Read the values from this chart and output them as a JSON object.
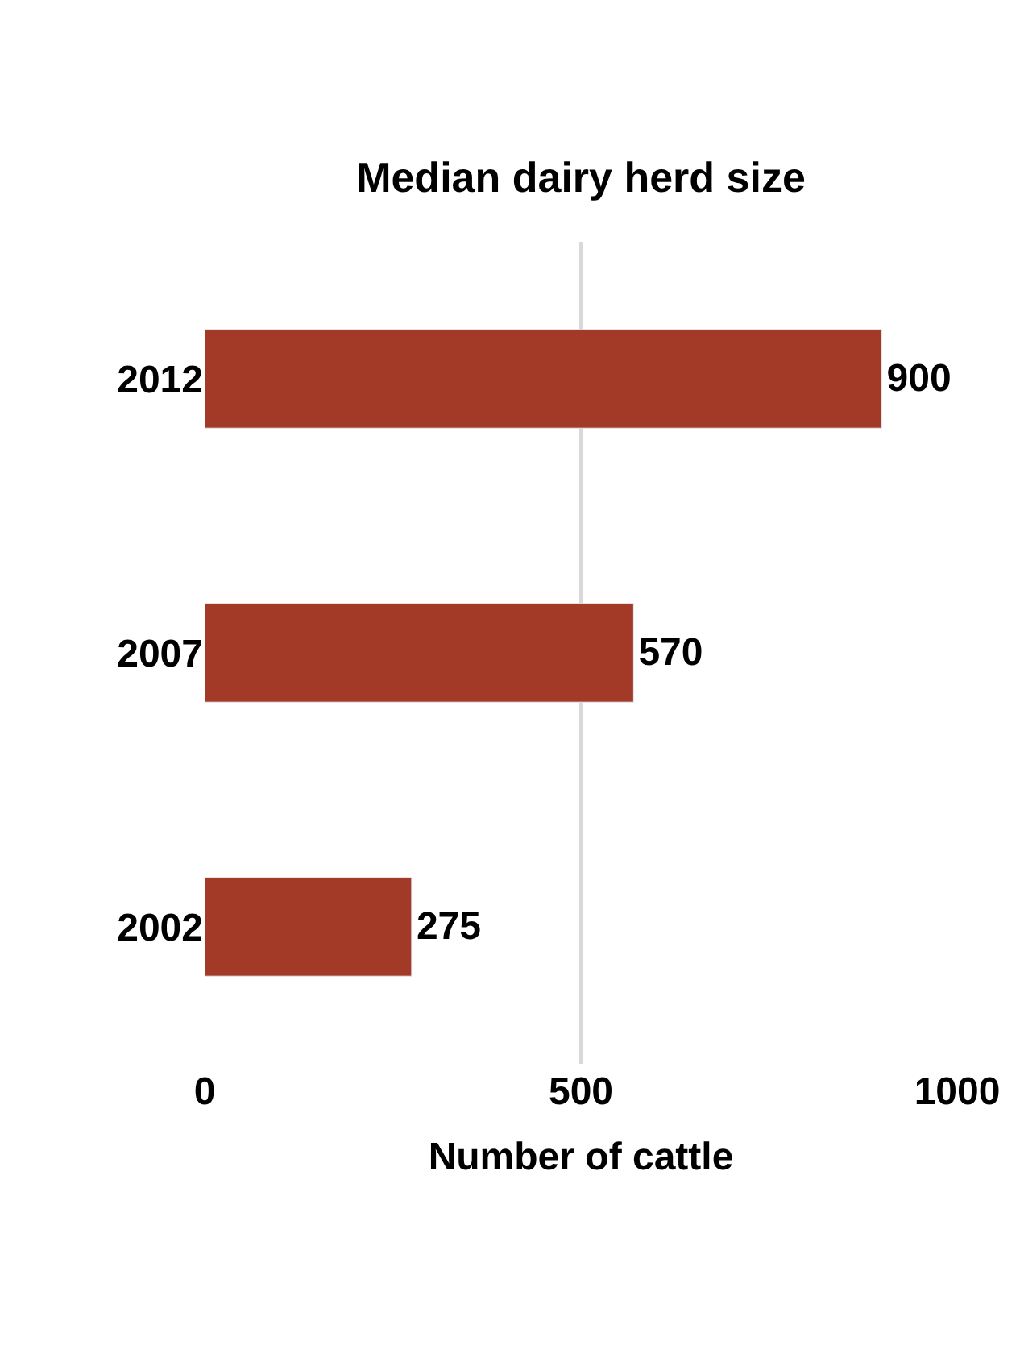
{
  "chart_data": {
    "type": "bar",
    "orientation": "horizontal",
    "title": "Median dairy herd size",
    "xlabel": "Number of cattle",
    "categories": [
      "2012",
      "2007",
      "2002"
    ],
    "values": [
      900,
      570,
      275
    ],
    "color": "#a33a27",
    "xlim": [
      0,
      1000
    ],
    "xticks": [
      0,
      500,
      1000
    ],
    "grid": "x",
    "data_labels": true
  }
}
